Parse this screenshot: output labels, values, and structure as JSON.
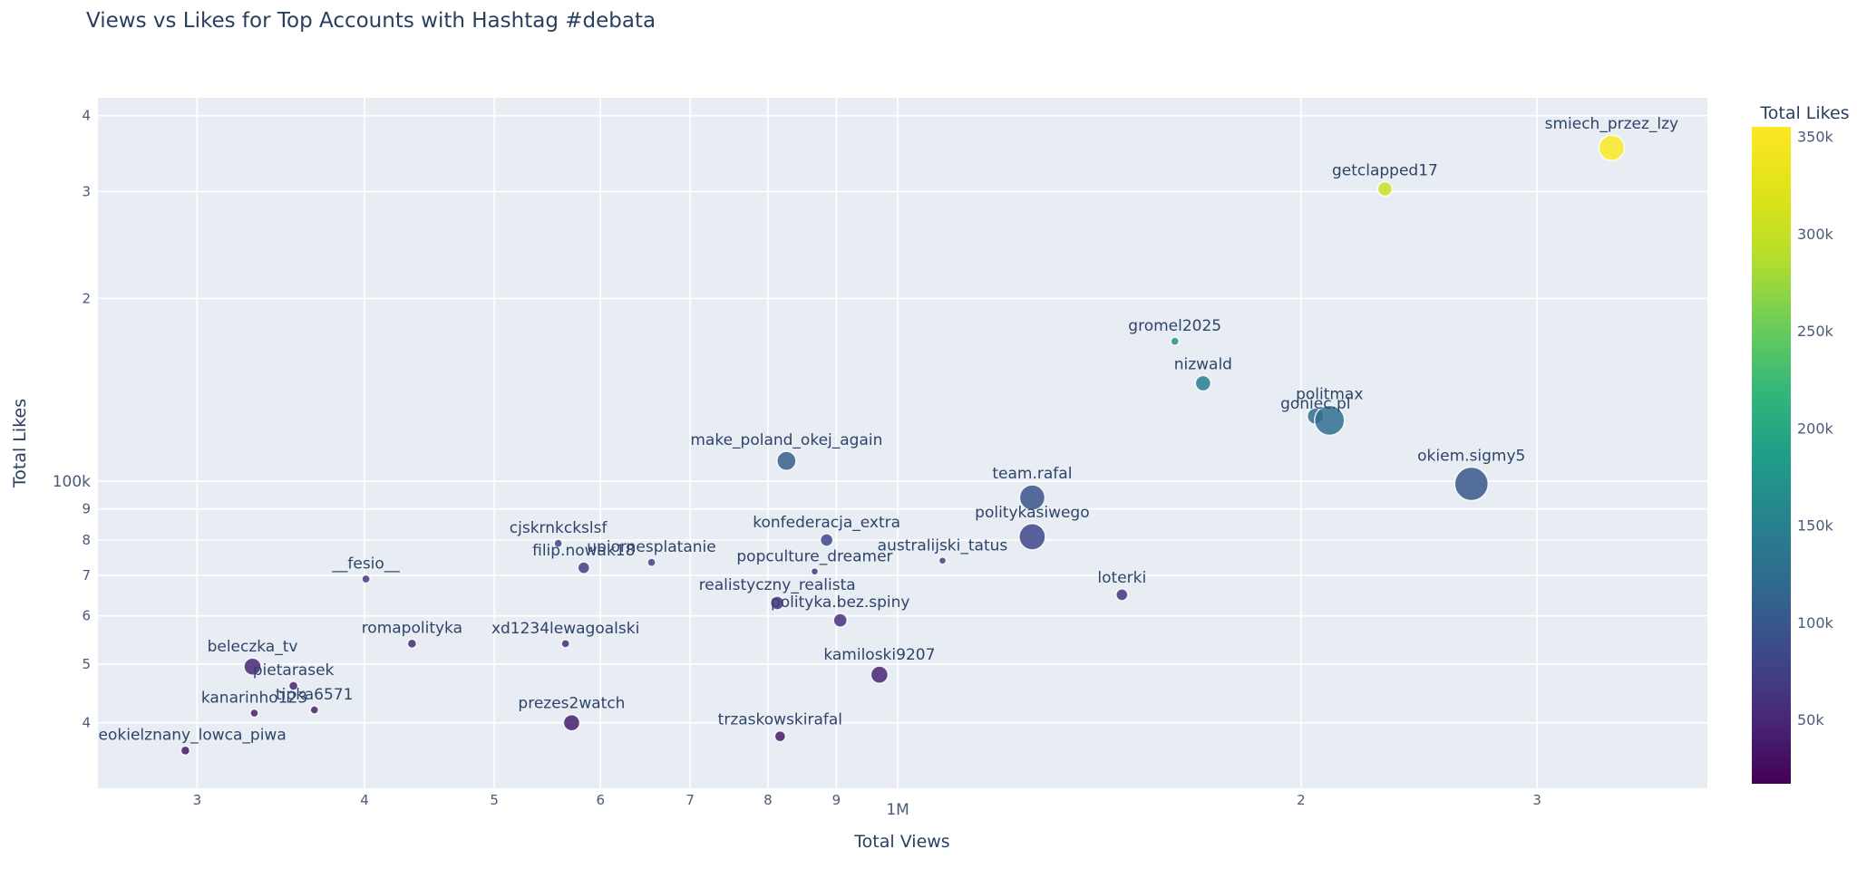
{
  "chart_data": {
    "type": "scatter",
    "title": "Views vs Likes for Top Accounts with Hashtag #debata",
    "xlabel": "Total Views",
    "ylabel": "Total Likes",
    "x_scale": "log",
    "y_scale": "log",
    "xlim": [
      253000,
      4020000
    ],
    "ylim": [
      31200,
      428000
    ],
    "grid": true,
    "x_ticks": [
      {
        "label": "3",
        "value": 300000,
        "major": false
      },
      {
        "label": "4",
        "value": 400000,
        "major": false
      },
      {
        "label": "5",
        "value": 500000,
        "major": false
      },
      {
        "label": "6",
        "value": 600000,
        "major": false
      },
      {
        "label": "7",
        "value": 700000,
        "major": false
      },
      {
        "label": "8",
        "value": 800000,
        "major": false
      },
      {
        "label": "9",
        "value": 900000,
        "major": false
      },
      {
        "label": "1M",
        "value": 1000000,
        "major": true
      },
      {
        "label": "2",
        "value": 2000000,
        "major": false
      },
      {
        "label": "3",
        "value": 3000000,
        "major": false
      }
    ],
    "y_ticks": [
      {
        "label": "4",
        "value": 400000,
        "major": false
      },
      {
        "label": "3",
        "value": 300000,
        "major": false
      },
      {
        "label": "2",
        "value": 200000,
        "major": false
      },
      {
        "label": "100k",
        "value": 100000,
        "major": true
      },
      {
        "label": "9",
        "value": 90000,
        "major": false
      },
      {
        "label": "8",
        "value": 80000,
        "major": false
      },
      {
        "label": "7",
        "value": 70000,
        "major": false
      },
      {
        "label": "6",
        "value": 60000,
        "major": false
      },
      {
        "label": "5",
        "value": 50000,
        "major": false
      },
      {
        "label": "4",
        "value": 40000,
        "major": false
      }
    ],
    "colorbar": {
      "title": "Total Likes",
      "palette": "viridis",
      "range": [
        17000,
        355000
      ],
      "ticks": [
        {
          "label": "350k",
          "value": 350000
        },
        {
          "label": "300k",
          "value": 300000
        },
        {
          "label": "250k",
          "value": 250000
        },
        {
          "label": "200k",
          "value": 200000
        },
        {
          "label": "150k",
          "value": 150000
        },
        {
          "label": "100k",
          "value": 100000
        },
        {
          "label": "50k",
          "value": 50000
        }
      ]
    },
    "points": [
      {
        "name": "nieokielznany_lowca_piwa",
        "views": 294000,
        "likes": 36000,
        "size": 5
      },
      {
        "name": "kanarinho123",
        "views": 331000,
        "likes": 41500,
        "size": 4.5
      },
      {
        "name": "tipka6571",
        "views": 367000,
        "likes": 42000,
        "size": 4.5
      },
      {
        "name": "pietarasek",
        "views": 354000,
        "likes": 46000,
        "size": 5
      },
      {
        "name": "beleczka_tv",
        "views": 330000,
        "likes": 49500,
        "size": 9.5
      },
      {
        "name": "romapolityka",
        "views": 434000,
        "likes": 54000,
        "size": 5
      },
      {
        "name": "__fesio__",
        "views": 401000,
        "likes": 69000,
        "size": 4.5
      },
      {
        "name": "xd1234lewagoalski",
        "views": 565000,
        "likes": 54000,
        "size": 4.5
      },
      {
        "name": "prezes2watch",
        "views": 571000,
        "likes": 40000,
        "size": 9
      },
      {
        "name": "cjskrnkckslsf",
        "views": 558000,
        "likes": 79000,
        "size": 4.5
      },
      {
        "name": "filip.nowak18",
        "views": 583000,
        "likes": 72000,
        "size": 6.5
      },
      {
        "name": "upiornesplatanie",
        "views": 655000,
        "likes": 73500,
        "size": 4.5
      },
      {
        "name": "trzaskowskirafal",
        "views": 817000,
        "likes": 38000,
        "size": 6
      },
      {
        "name": "realistyczny_realista",
        "views": 813000,
        "likes": 63000,
        "size": 7.5
      },
      {
        "name": "polityka.bez.spiny",
        "views": 906000,
        "likes": 59000,
        "size": 7.5
      },
      {
        "name": "popculture_dreamer",
        "views": 867000,
        "likes": 71000,
        "size": 4
      },
      {
        "name": "konfederacja_extra",
        "views": 885000,
        "likes": 80000,
        "size": 7
      },
      {
        "name": "make_poland_okej_again",
        "views": 826000,
        "likes": 108000,
        "size": 10.5
      },
      {
        "name": "kamiloski9207",
        "views": 969000,
        "likes": 48000,
        "size": 9.5
      },
      {
        "name": "australijski_tatus",
        "views": 1080000,
        "likes": 74000,
        "size": 4
      },
      {
        "name": "team.rafal",
        "views": 1260000,
        "likes": 94000,
        "size": 14
      },
      {
        "name": "politykasiwego",
        "views": 1260000,
        "likes": 81000,
        "size": 14.5
      },
      {
        "name": "loterki",
        "views": 1470000,
        "likes": 65000,
        "size": 6.5
      },
      {
        "name": "gromel2025",
        "views": 1610000,
        "likes": 170000,
        "size": 4.5
      },
      {
        "name": "nizwald",
        "views": 1690000,
        "likes": 145000,
        "size": 8.5
      },
      {
        "name": "goniec.pl",
        "views": 2050000,
        "likes": 128000,
        "size": 9,
        "ldy": 8
      },
      {
        "name": "politmax",
        "views": 2100000,
        "likes": 126000,
        "size": 16.5
      },
      {
        "name": "getclapped17",
        "views": 2310000,
        "likes": 303000,
        "size": 8
      },
      {
        "name": "okiem.sigmy5",
        "views": 2680000,
        "likes": 99000,
        "size": 18.5
      },
      {
        "name": "smiech_przez_lzy",
        "views": 3410000,
        "likes": 354000,
        "size": 14
      }
    ],
    "colors": {
      "plot_bg": "#e8edf4",
      "grid": "#ffffff",
      "title_text": "#2a3f5f",
      "tick_text": "#4b5b77",
      "label_text": "#2e4468"
    }
  }
}
